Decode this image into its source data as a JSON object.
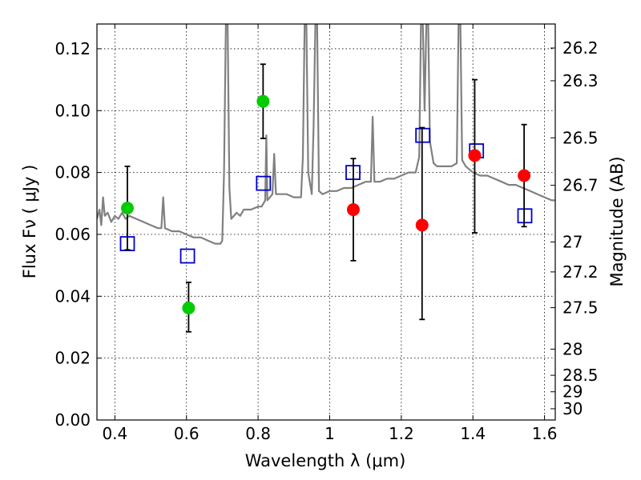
{
  "chart_data": {
    "type": "scatter",
    "xlabel": "Wavelength  λ (μm)",
    "ylabel": "Flux  Fν  ( μJy )",
    "ylabel_right": "Magnitude (AB)",
    "xlim": [
      0.35,
      1.63
    ],
    "ylim": [
      0.0,
      0.128
    ],
    "grid": true,
    "x_ticks": [
      {
        "value": 0.4,
        "label": "0.4"
      },
      {
        "value": 0.6,
        "label": "0.6"
      },
      {
        "value": 0.8,
        "label": "0.8"
      },
      {
        "value": 1.0,
        "label": "1"
      },
      {
        "value": 1.2,
        "label": "1.2"
      },
      {
        "value": 1.4,
        "label": "1.4"
      },
      {
        "value": 1.6,
        "label": "1.6"
      }
    ],
    "y_ticks": [
      {
        "value": 0.0,
        "label": "0.00"
      },
      {
        "value": 0.02,
        "label": "0.02"
      },
      {
        "value": 0.04,
        "label": "0.04"
      },
      {
        "value": 0.06,
        "label": "0.06"
      },
      {
        "value": 0.08,
        "label": "0.08"
      },
      {
        "value": 0.1,
        "label": "0.10"
      },
      {
        "value": 0.12,
        "label": "0.12"
      }
    ],
    "mag_ticks": [
      {
        "value": 26.2,
        "label": "26.2"
      },
      {
        "value": 26.3,
        "label": "26.3"
      },
      {
        "value": 26.5,
        "label": "26.5"
      },
      {
        "value": 26.7,
        "label": "26.7"
      },
      {
        "value": 27.0,
        "label": "27"
      },
      {
        "value": 27.2,
        "label": "27.2"
      },
      {
        "value": 27.5,
        "label": "27.5"
      },
      {
        "value": 28.0,
        "label": "28"
      },
      {
        "value": 28.5,
        "label": "28.5"
      },
      {
        "value": 29.0,
        "label": "29"
      },
      {
        "value": 30.0,
        "label": "30"
      }
    ],
    "series": [
      {
        "kind": "line",
        "color": "#808080",
        "points": [
          [
            0.35,
            0.065
          ],
          [
            0.357,
            0.068
          ],
          [
            0.362,
            0.063
          ],
          [
            0.367,
            0.072
          ],
          [
            0.372,
            0.066
          ],
          [
            0.38,
            0.067
          ],
          [
            0.39,
            0.064
          ],
          [
            0.4,
            0.066
          ],
          [
            0.41,
            0.065
          ],
          [
            0.42,
            0.067
          ],
          [
            0.43,
            0.065
          ],
          [
            0.44,
            0.066
          ],
          [
            0.46,
            0.065
          ],
          [
            0.48,
            0.064
          ],
          [
            0.5,
            0.063
          ],
          [
            0.52,
            0.062
          ],
          [
            0.53,
            0.062
          ],
          [
            0.535,
            0.072
          ],
          [
            0.54,
            0.062
          ],
          [
            0.56,
            0.061
          ],
          [
            0.58,
            0.061
          ],
          [
            0.6,
            0.06
          ],
          [
            0.62,
            0.059
          ],
          [
            0.64,
            0.059
          ],
          [
            0.66,
            0.058
          ],
          [
            0.68,
            0.057
          ],
          [
            0.695,
            0.057
          ],
          [
            0.7,
            0.058
          ],
          [
            0.705,
            0.08
          ],
          [
            0.71,
            0.128
          ],
          [
            0.715,
            0.128
          ],
          [
            0.72,
            0.075
          ],
          [
            0.725,
            0.065
          ],
          [
            0.74,
            0.067
          ],
          [
            0.75,
            0.066
          ],
          [
            0.76,
            0.068
          ],
          [
            0.78,
            0.068
          ],
          [
            0.8,
            0.069
          ],
          [
            0.81,
            0.069
          ],
          [
            0.82,
            0.071
          ],
          [
            0.823,
            0.092
          ],
          [
            0.826,
            0.071
          ],
          [
            0.84,
            0.073
          ],
          [
            0.845,
            0.086
          ],
          [
            0.85,
            0.073
          ],
          [
            0.86,
            0.073
          ],
          [
            0.88,
            0.073
          ],
          [
            0.9,
            0.072
          ],
          [
            0.92,
            0.072
          ],
          [
            0.925,
            0.085
          ],
          [
            0.93,
            0.128
          ],
          [
            0.935,
            0.128
          ],
          [
            0.94,
            0.08
          ],
          [
            0.95,
            0.073
          ],
          [
            0.955,
            0.095
          ],
          [
            0.96,
            0.128
          ],
          [
            0.965,
            0.128
          ],
          [
            0.97,
            0.074
          ],
          [
            0.98,
            0.073
          ],
          [
            1.0,
            0.074
          ],
          [
            1.02,
            0.074
          ],
          [
            1.04,
            0.075
          ],
          [
            1.06,
            0.075
          ],
          [
            1.08,
            0.076
          ],
          [
            1.1,
            0.077
          ],
          [
            1.115,
            0.077
          ],
          [
            1.12,
            0.098
          ],
          [
            1.125,
            0.077
          ],
          [
            1.14,
            0.077
          ],
          [
            1.16,
            0.078
          ],
          [
            1.18,
            0.078
          ],
          [
            1.2,
            0.079
          ],
          [
            1.22,
            0.08
          ],
          [
            1.24,
            0.08
          ],
          [
            1.25,
            0.085
          ],
          [
            1.255,
            0.128
          ],
          [
            1.26,
            0.128
          ],
          [
            1.265,
            0.1
          ],
          [
            1.27,
            0.128
          ],
          [
            1.275,
            0.128
          ],
          [
            1.28,
            0.09
          ],
          [
            1.29,
            0.083
          ],
          [
            1.3,
            0.082
          ],
          [
            1.32,
            0.082
          ],
          [
            1.34,
            0.082
          ],
          [
            1.355,
            0.083
          ],
          [
            1.36,
            0.128
          ],
          [
            1.365,
            0.128
          ],
          [
            1.37,
            0.084
          ],
          [
            1.38,
            0.082
          ],
          [
            1.4,
            0.08
          ],
          [
            1.42,
            0.079
          ],
          [
            1.44,
            0.079
          ],
          [
            1.46,
            0.078
          ],
          [
            1.48,
            0.077
          ],
          [
            1.5,
            0.076
          ],
          [
            1.52,
            0.076
          ],
          [
            1.54,
            0.075
          ],
          [
            1.56,
            0.074
          ],
          [
            1.58,
            0.073
          ],
          [
            1.6,
            0.072
          ],
          [
            1.62,
            0.071
          ],
          [
            1.63,
            0.071
          ]
        ]
      },
      {
        "kind": "scatter",
        "marker": "square",
        "color": "#0000cc",
        "points": [
          [
            0.435,
            0.057
          ],
          [
            0.603,
            0.053
          ],
          [
            0.815,
            0.0765
          ],
          [
            1.065,
            0.08
          ],
          [
            1.26,
            0.092
          ],
          [
            1.41,
            0.087
          ],
          [
            1.545,
            0.066
          ]
        ]
      },
      {
        "kind": "scatter",
        "marker": "circle",
        "color": "#00cc00",
        "points": [
          {
            "x": 0.435,
            "y": 0.0685,
            "lo": 0.055,
            "hi": 0.082
          },
          {
            "x": 0.606,
            "y": 0.0362,
            "lo": 0.0285,
            "hi": 0.0445
          },
          {
            "x": 0.814,
            "y": 0.103,
            "lo": 0.091,
            "hi": 0.115
          }
        ]
      },
      {
        "kind": "scatter",
        "marker": "circle",
        "color": "#ff0000",
        "points": [
          {
            "x": 1.066,
            "y": 0.068,
            "lo": 0.0515,
            "hi": 0.0845
          },
          {
            "x": 1.258,
            "y": 0.063,
            "lo": 0.0325,
            "hi": 0.0945
          },
          {
            "x": 1.405,
            "y": 0.0855,
            "lo": 0.0605,
            "hi": 0.11
          },
          {
            "x": 1.543,
            "y": 0.079,
            "lo": 0.0625,
            "hi": 0.0955
          }
        ]
      }
    ]
  }
}
